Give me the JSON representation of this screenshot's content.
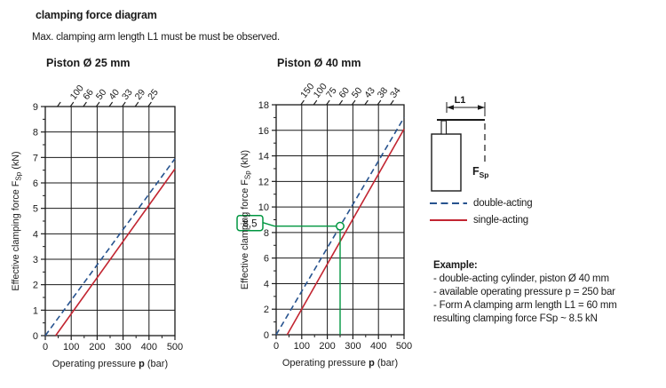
{
  "page": {
    "title": "clamping force diagram",
    "subtitle": "Max. clamping arm length L1 must be must be observed."
  },
  "colors": {
    "ink": "#1a1a1a",
    "double_acting": "#27538f",
    "single_acting": "#c22531",
    "annotation_green": "#009640"
  },
  "legend": {
    "items": [
      {
        "label": "double-acting",
        "line_style": "dashed",
        "color": "double_acting"
      },
      {
        "label": "single-acting",
        "line_style": "solid",
        "color": "single_acting"
      }
    ]
  },
  "figure": {
    "dimension_label": "L1",
    "force_label": "F",
    "force_subscript": "Sp"
  },
  "example": {
    "heading": "Example:",
    "lines": [
      "- double-acting cylinder, piston Ø 40 mm",
      "- available operating pressure p = 250 bar",
      "- Form A clamping arm length L1 = 60 mm",
      "resulting clamping force FSp ~ 8.5 kN"
    ]
  },
  "chart_data": [
    {
      "type": "line",
      "title": "Piston Ø 25 mm",
      "xlabel": {
        "pre": "Operating pressure ",
        "bold": "p",
        "post": " (bar)"
      },
      "ylabel": {
        "pre": "Effective clamping force F",
        "sub": "Sp",
        "post": " (kN)"
      },
      "xlim": [
        0,
        500
      ],
      "ylim": [
        0,
        9
      ],
      "grid": true,
      "x_ticks": [
        0,
        100,
        200,
        300,
        400,
        500
      ],
      "x_minor_step": 50,
      "y_tick_step": 1,
      "y_minor_step": 0.5,
      "top_scale": {
        "ticks": [
          {
            "p": 50,
            "label": ""
          },
          {
            "p": 100,
            "label": "100"
          },
          {
            "p": 150,
            "label": "66"
          },
          {
            "p": 200,
            "label": "50"
          },
          {
            "p": 250,
            "label": "40"
          },
          {
            "p": 300,
            "label": "33"
          },
          {
            "p": 350,
            "label": "29"
          },
          {
            "p": 400,
            "label": "25"
          }
        ]
      },
      "series": [
        {
          "name": "double-acting",
          "style": "dashed",
          "color": "double_acting",
          "points": [
            [
              0,
              0
            ],
            [
              500,
              6.95
            ]
          ]
        },
        {
          "name": "single-acting",
          "style": "solid",
          "color": "single_acting",
          "points": [
            [
              40,
              0
            ],
            [
              500,
              6.55
            ]
          ]
        }
      ]
    },
    {
      "type": "line",
      "title": "Piston Ø 40 mm",
      "xlabel": {
        "pre": "Operating pressure ",
        "bold": "p",
        "post": " (bar)"
      },
      "ylabel": {
        "pre": "Effective clamping force F",
        "sub": "Sp",
        "post": " (kN)"
      },
      "xlim": [
        0,
        500
      ],
      "ylim": [
        0,
        18
      ],
      "grid": true,
      "x_ticks": [
        0,
        100,
        200,
        300,
        400,
        500
      ],
      "x_minor_step": 50,
      "y_tick_step": 2,
      "y_minor_step": 1,
      "top_scale": {
        "ticks": [
          {
            "p": 100,
            "label": "150"
          },
          {
            "p": 150,
            "label": "100"
          },
          {
            "p": 200,
            "label": "75"
          },
          {
            "p": 250,
            "label": "60"
          },
          {
            "p": 300,
            "label": "50"
          },
          {
            "p": 350,
            "label": "43"
          },
          {
            "p": 400,
            "label": "38"
          },
          {
            "p": 450,
            "label": "34"
          }
        ]
      },
      "series": [
        {
          "name": "double-acting",
          "style": "dashed",
          "color": "double_acting",
          "points": [
            [
              0,
              0
            ],
            [
              500,
              17.0
            ]
          ]
        },
        {
          "name": "single-acting",
          "style": "solid",
          "color": "single_acting",
          "points": [
            [
              43,
              0
            ],
            [
              500,
              16.1
            ]
          ]
        }
      ],
      "annotation": {
        "label": "8,5",
        "x": 250,
        "y": 8.5
      }
    }
  ]
}
